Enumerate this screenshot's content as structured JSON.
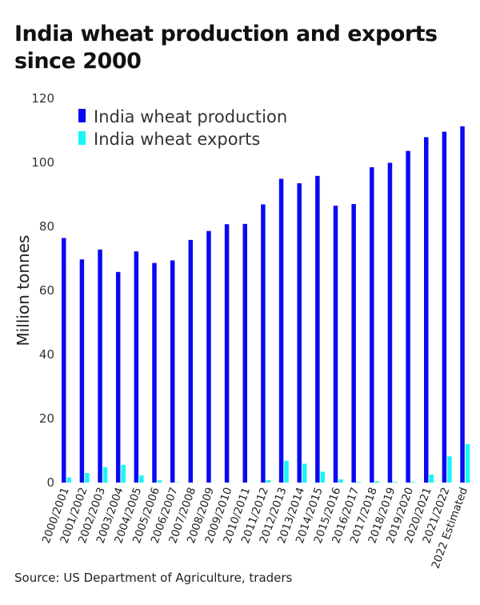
{
  "chart_data": {
    "type": "bar",
    "title": "India wheat production and exports since 2000",
    "ylabel": "Million tonnes",
    "xlabel": "",
    "ylim": [
      0,
      120
    ],
    "yticks": [
      0,
      20,
      40,
      60,
      80,
      100,
      120
    ],
    "grid": false,
    "legend_position": "top-left",
    "categories": [
      "2000/2001",
      "2001/2002",
      "2002/2003",
      "2003/2004",
      "2004/2005",
      "2005/2006",
      "2006/2007",
      "2007/2008",
      "2008/2009",
      "2009/2010",
      "2010/2011",
      "2011/2012",
      "2012/2013",
      "2013/2014",
      "2014/2015",
      "2015/2016",
      "2016/2017",
      "2017/2018",
      "2018/2019",
      "2019/2020",
      "2020/2021",
      "2021/2022",
      "2022 Estimated"
    ],
    "series": [
      {
        "name": "India wheat production",
        "color": "#0a0af0",
        "values": [
          76.4,
          69.7,
          72.8,
          65.8,
          72.2,
          68.6,
          69.4,
          75.8,
          78.6,
          80.7,
          80.8,
          86.9,
          94.9,
          93.5,
          95.8,
          86.5,
          87.0,
          98.5,
          99.9,
          103.6,
          107.9,
          109.6,
          111.3
        ]
      },
      {
        "name": "India wheat exports",
        "color": "#19f5f5",
        "values": [
          1.6,
          3.0,
          4.8,
          5.5,
          2.2,
          0.7,
          0.1,
          0.0,
          0.0,
          0.0,
          0.0,
          0.7,
          6.8,
          5.9,
          3.4,
          1.0,
          0.2,
          0.4,
          0.2,
          0.2,
          2.5,
          8.2,
          12.0
        ]
      }
    ],
    "source": "Source: US Department of Agriculture, traders"
  }
}
